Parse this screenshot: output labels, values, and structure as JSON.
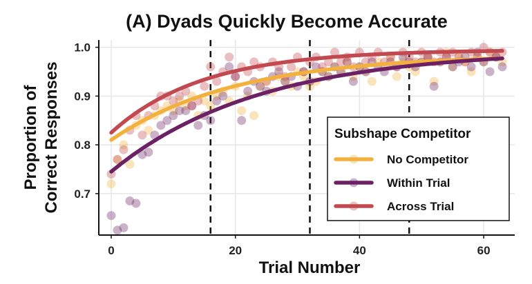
{
  "chart_data": {
    "type": "scatter",
    "title": "(A) Dyads Quickly Become Accurate",
    "xlabel": "Trial Number",
    "ylabel": "Proportion of\nCorrect Responses",
    "xlim": [
      -2,
      65
    ],
    "ylim": [
      0.615,
      1.015
    ],
    "xticks": [
      0,
      20,
      40,
      60
    ],
    "yticks": [
      0.7,
      0.8,
      0.9,
      1.0
    ],
    "ytick_labels": [
      "0.7",
      "0.8",
      "0.9",
      "1.0"
    ],
    "grid": true,
    "vlines": [
      16,
      32,
      48
    ],
    "legend": {
      "title": "Subshape Competitor",
      "position": "bottom-right"
    },
    "series": [
      {
        "name": "No Competitor",
        "color": "#f2b13e",
        "fit": {
          "a": 0.985,
          "b": 0.175,
          "k": 0.05
        },
        "points": [
          [
            0,
            0.72
          ],
          [
            1,
            0.77
          ],
          [
            2,
            0.8
          ],
          [
            3,
            0.76
          ],
          [
            4,
            0.84
          ],
          [
            5,
            0.85
          ],
          [
            6,
            0.83
          ],
          [
            7,
            0.86
          ],
          [
            8,
            0.87
          ],
          [
            9,
            0.88
          ],
          [
            10,
            0.87
          ],
          [
            11,
            0.89
          ],
          [
            12,
            0.88
          ],
          [
            13,
            0.9
          ],
          [
            14,
            0.86
          ],
          [
            15,
            0.89
          ],
          [
            16,
            0.88
          ],
          [
            17,
            0.9
          ],
          [
            18,
            0.91
          ],
          [
            19,
            0.89
          ],
          [
            20,
            0.92
          ],
          [
            21,
            0.87
          ],
          [
            22,
            0.9
          ],
          [
            23,
            0.86
          ],
          [
            24,
            0.92
          ],
          [
            25,
            0.93
          ],
          [
            26,
            0.91
          ],
          [
            27,
            0.94
          ],
          [
            28,
            0.93
          ],
          [
            29,
            0.92
          ],
          [
            30,
            0.95
          ],
          [
            31,
            0.94
          ],
          [
            32,
            0.92
          ],
          [
            33,
            0.93
          ],
          [
            34,
            0.95
          ],
          [
            35,
            0.94
          ],
          [
            36,
            0.96
          ],
          [
            37,
            0.95
          ],
          [
            38,
            0.97
          ],
          [
            39,
            0.94
          ],
          [
            40,
            0.96
          ],
          [
            41,
            0.95
          ],
          [
            42,
            0.93
          ],
          [
            43,
            0.97
          ],
          [
            44,
            0.96
          ],
          [
            45,
            0.98
          ],
          [
            46,
            0.94
          ],
          [
            47,
            0.97
          ],
          [
            48,
            0.96
          ],
          [
            49,
            0.95
          ],
          [
            50,
            0.97
          ],
          [
            51,
            0.98
          ],
          [
            52,
            0.93
          ],
          [
            53,
            0.97
          ],
          [
            54,
            0.99
          ],
          [
            55,
            0.96
          ],
          [
            56,
            0.98
          ],
          [
            57,
            0.97
          ],
          [
            58,
            0.95
          ],
          [
            59,
            0.98
          ],
          [
            60,
            0.97
          ],
          [
            61,
            0.99
          ],
          [
            62,
            0.98
          ],
          [
            63,
            0.97
          ]
        ]
      },
      {
        "name": "Within Trial",
        "color": "#6b2163",
        "fit": {
          "a": 0.995,
          "b": 0.25,
          "k": 0.042
        },
        "points": [
          [
            0,
            0.655
          ],
          [
            1,
            0.625
          ],
          [
            2,
            0.63
          ],
          [
            3,
            0.685
          ],
          [
            4,
            0.68
          ],
          [
            5,
            0.78
          ],
          [
            6,
            0.785
          ],
          [
            7,
            0.82
          ],
          [
            8,
            0.84
          ],
          [
            9,
            0.85
          ],
          [
            10,
            0.86
          ],
          [
            11,
            0.87
          ],
          [
            12,
            0.87
          ],
          [
            13,
            0.88
          ],
          [
            14,
            0.84
          ],
          [
            15,
            0.86
          ],
          [
            16,
            0.85
          ],
          [
            17,
            0.89
          ],
          [
            18,
            0.9
          ],
          [
            19,
            0.96
          ],
          [
            20,
            0.94
          ],
          [
            21,
            0.85
          ],
          [
            22,
            0.91
          ],
          [
            23,
            0.93
          ],
          [
            24,
            0.92
          ],
          [
            25,
            0.91
          ],
          [
            26,
            0.94
          ],
          [
            27,
            0.95
          ],
          [
            28,
            0.93
          ],
          [
            29,
            0.94
          ],
          [
            30,
            0.92
          ],
          [
            31,
            0.95
          ],
          [
            32,
            0.93
          ],
          [
            33,
            0.96
          ],
          [
            34,
            0.95
          ],
          [
            35,
            0.94
          ],
          [
            36,
            0.96
          ],
          [
            37,
            0.95
          ],
          [
            38,
            0.97
          ],
          [
            39,
            0.93
          ],
          [
            40,
            0.96
          ],
          [
            41,
            0.95
          ],
          [
            42,
            0.97
          ],
          [
            43,
            0.96
          ],
          [
            44,
            0.95
          ],
          [
            45,
            0.97
          ],
          [
            46,
            0.96
          ],
          [
            47,
            0.98
          ],
          [
            48,
            0.97
          ],
          [
            49,
            0.96
          ],
          [
            50,
            0.97
          ],
          [
            51,
            0.98
          ],
          [
            52,
            0.92
          ],
          [
            53,
            0.97
          ],
          [
            54,
            0.98
          ],
          [
            55,
            0.96
          ],
          [
            56,
            0.97
          ],
          [
            57,
            0.98
          ],
          [
            58,
            0.96
          ],
          [
            59,
            0.99
          ],
          [
            60,
            0.97
          ],
          [
            61,
            0.95
          ],
          [
            62,
            0.98
          ],
          [
            63,
            0.96
          ]
        ]
      },
      {
        "name": "Across Trial",
        "color": "#c1494f",
        "fit": {
          "a": 0.995,
          "b": 0.17,
          "k": 0.068
        },
        "points": [
          [
            0,
            0.74
          ],
          [
            1,
            0.77
          ],
          [
            2,
            0.79
          ],
          [
            3,
            0.83
          ],
          [
            4,
            0.86
          ],
          [
            5,
            0.82
          ],
          [
            6,
            0.86
          ],
          [
            7,
            0.88
          ],
          [
            8,
            0.9
          ],
          [
            9,
            0.9
          ],
          [
            10,
            0.89
          ],
          [
            11,
            0.9
          ],
          [
            12,
            0.91
          ],
          [
            13,
            0.88
          ],
          [
            14,
            0.89
          ],
          [
            15,
            0.92
          ],
          [
            16,
            0.96
          ],
          [
            17,
            0.93
          ],
          [
            18,
            0.95
          ],
          [
            19,
            0.98
          ],
          [
            20,
            0.94
          ],
          [
            21,
            0.96
          ],
          [
            22,
            0.95
          ],
          [
            23,
            0.97
          ],
          [
            24,
            0.96
          ],
          [
            25,
            0.93
          ],
          [
            26,
            0.97
          ],
          [
            27,
            0.96
          ],
          [
            28,
            0.94
          ],
          [
            29,
            0.96
          ],
          [
            30,
            0.98
          ],
          [
            31,
            0.95
          ],
          [
            32,
            0.97
          ],
          [
            33,
            0.98
          ],
          [
            34,
            0.96
          ],
          [
            35,
            0.97
          ],
          [
            36,
            0.99
          ],
          [
            37,
            0.97
          ],
          [
            38,
            0.98
          ],
          [
            39,
            0.96
          ],
          [
            40,
            0.99
          ],
          [
            41,
            0.97
          ],
          [
            42,
            0.98
          ],
          [
            43,
            0.99
          ],
          [
            44,
            0.97
          ],
          [
            45,
            0.98
          ],
          [
            46,
            0.96
          ],
          [
            47,
            0.99
          ],
          [
            48,
            0.98
          ],
          [
            49,
            0.97
          ],
          [
            50,
            0.99
          ],
          [
            51,
            0.98
          ],
          [
            52,
            0.97
          ],
          [
            53,
            0.99
          ],
          [
            54,
            0.98
          ],
          [
            55,
            0.99
          ],
          [
            56,
            0.98
          ],
          [
            57,
            0.97
          ],
          [
            58,
            0.99
          ],
          [
            59,
            0.98
          ],
          [
            60,
            1.0
          ],
          [
            61,
            0.99
          ],
          [
            62,
            0.98
          ],
          [
            63,
            0.99
          ]
        ]
      }
    ]
  }
}
